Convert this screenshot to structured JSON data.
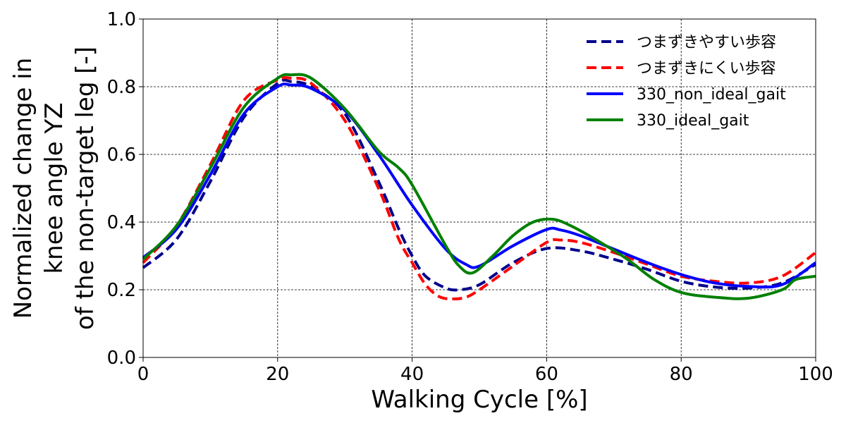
{
  "chart_data": {
    "type": "line",
    "xlabel": "Walking Cycle [%]",
    "ylabel_lines": [
      "Normalized change in",
      "knee angle YZ",
      "of the non-target leg [-]"
    ],
    "xlim": [
      0,
      100
    ],
    "ylim": [
      0.0,
      1.0
    ],
    "x_ticks": [
      "0",
      "20",
      "40",
      "60",
      "80",
      "100"
    ],
    "y_ticks": [
      "0.0",
      "0.2",
      "0.4",
      "0.6",
      "0.8",
      "1.0"
    ],
    "grid": true,
    "legend_position": "top-right",
    "series": [
      {
        "name": "つまずきやすい歩容",
        "color": "#00008b",
        "dash": "dashed",
        "x": [
          0,
          5,
          10,
          15,
          20,
          22,
          25,
          30,
          35,
          38,
          40,
          42,
          45,
          47,
          50,
          55,
          60,
          65,
          70,
          75,
          80,
          85,
          90,
          95,
          100
        ],
        "y": [
          0.265,
          0.35,
          0.52,
          0.71,
          0.81,
          0.815,
          0.8,
          0.72,
          0.52,
          0.38,
          0.3,
          0.24,
          0.205,
          0.2,
          0.215,
          0.28,
          0.322,
          0.315,
          0.29,
          0.26,
          0.225,
          0.208,
          0.205,
          0.22,
          0.275
        ]
      },
      {
        "name": "つまずきにくい歩容",
        "color": "#ff0000",
        "dash": "dashed",
        "x": [
          0,
          5,
          10,
          15,
          20,
          22,
          25,
          30,
          35,
          38,
          40,
          42,
          44,
          46,
          48,
          50,
          55,
          60,
          62,
          65,
          70,
          75,
          80,
          85,
          90,
          95,
          100
        ],
        "y": [
          0.28,
          0.39,
          0.57,
          0.76,
          0.82,
          0.825,
          0.81,
          0.7,
          0.5,
          0.35,
          0.28,
          0.215,
          0.18,
          0.173,
          0.178,
          0.2,
          0.27,
          0.34,
          0.347,
          0.34,
          0.31,
          0.275,
          0.24,
          0.225,
          0.22,
          0.24,
          0.31
        ]
      },
      {
        "name": "330_non_ideal_gait",
        "color": "#0000ff",
        "dash": "solid",
        "x": [
          0,
          5,
          10,
          15,
          20,
          22,
          25,
          30,
          35,
          40,
          45,
          48,
          50,
          55,
          60,
          62,
          65,
          70,
          75,
          80,
          85,
          90,
          95,
          100
        ],
        "y": [
          0.295,
          0.38,
          0.54,
          0.72,
          0.8,
          0.805,
          0.795,
          0.73,
          0.6,
          0.45,
          0.32,
          0.275,
          0.27,
          0.33,
          0.378,
          0.377,
          0.36,
          0.32,
          0.28,
          0.245,
          0.22,
          0.21,
          0.215,
          0.28
        ]
      },
      {
        "name": "330_ideal_gait",
        "color": "#008000",
        "dash": "solid",
        "x": [
          0,
          5,
          10,
          15,
          20,
          22,
          25,
          30,
          35,
          38,
          40,
          45,
          47,
          49,
          52,
          55,
          58,
          61,
          64,
          68,
          72,
          76,
          80,
          85,
          90,
          95,
          97,
          100
        ],
        "y": [
          0.29,
          0.39,
          0.56,
          0.74,
          0.825,
          0.835,
          0.825,
          0.735,
          0.61,
          0.56,
          0.51,
          0.33,
          0.27,
          0.25,
          0.3,
          0.36,
          0.4,
          0.408,
          0.385,
          0.34,
          0.29,
          0.23,
          0.192,
          0.178,
          0.175,
          0.2,
          0.23,
          0.24
        ]
      }
    ]
  }
}
